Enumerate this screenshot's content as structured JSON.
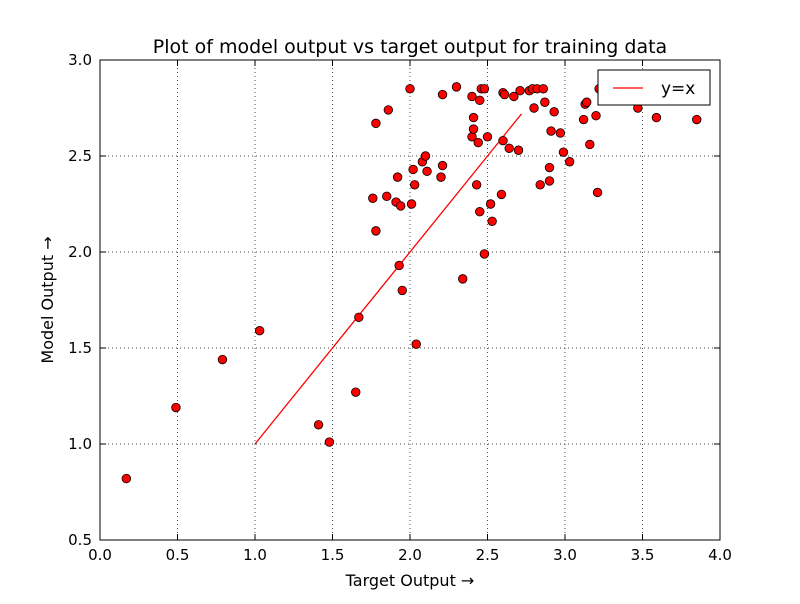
{
  "chart_data": {
    "type": "scatter",
    "title": "Plot of model output vs target output for training data",
    "xlabel": "Target Output  →",
    "ylabel": "Model Output  →",
    "xlim": [
      0.0,
      4.0
    ],
    "ylim": [
      0.5,
      3.0
    ],
    "xticks": [
      "0.0",
      "0.5",
      "1.0",
      "1.5",
      "2.0",
      "2.5",
      "3.0",
      "3.5",
      "4.0"
    ],
    "yticks": [
      "0.5",
      "1.0",
      "1.5",
      "2.0",
      "2.5",
      "3.0"
    ],
    "grid": true,
    "legend_position": "top-right",
    "point_color": "#ff0000",
    "line_color": "#ff0000",
    "series": [
      {
        "type": "scatter",
        "points": [
          [
            0.17,
            0.82
          ],
          [
            0.49,
            1.19
          ],
          [
            0.79,
            1.44
          ],
          [
            1.03,
            1.59
          ],
          [
            1.41,
            1.1
          ],
          [
            1.48,
            1.01
          ],
          [
            1.65,
            1.27
          ],
          [
            1.67,
            1.66
          ],
          [
            1.76,
            2.28
          ],
          [
            1.78,
            2.11
          ],
          [
            1.78,
            2.67
          ],
          [
            1.85,
            2.29
          ],
          [
            1.86,
            2.74
          ],
          [
            1.91,
            2.26
          ],
          [
            1.92,
            2.39
          ],
          [
            1.93,
            1.93
          ],
          [
            1.94,
            2.24
          ],
          [
            1.95,
            1.8
          ],
          [
            2.0,
            2.85
          ],
          [
            2.01,
            2.25
          ],
          [
            2.02,
            2.43
          ],
          [
            2.03,
            2.35
          ],
          [
            2.04,
            1.52
          ],
          [
            2.08,
            2.47
          ],
          [
            2.1,
            2.5
          ],
          [
            2.11,
            2.42
          ],
          [
            2.2,
            2.39
          ],
          [
            2.21,
            2.45
          ],
          [
            2.21,
            2.82
          ],
          [
            2.3,
            2.86
          ],
          [
            2.34,
            1.86
          ],
          [
            2.4,
            2.81
          ],
          [
            2.4,
            2.6
          ],
          [
            2.41,
            2.7
          ],
          [
            2.41,
            2.64
          ],
          [
            2.43,
            2.35
          ],
          [
            2.44,
            2.57
          ],
          [
            2.45,
            2.79
          ],
          [
            2.45,
            2.21
          ],
          [
            2.46,
            2.85
          ],
          [
            2.48,
            2.85
          ],
          [
            2.48,
            1.99
          ],
          [
            2.5,
            2.6
          ],
          [
            2.52,
            2.25
          ],
          [
            2.53,
            2.16
          ],
          [
            2.59,
            2.3
          ],
          [
            2.6,
            2.58
          ],
          [
            2.6,
            2.83
          ],
          [
            2.61,
            2.82
          ],
          [
            2.64,
            2.54
          ],
          [
            2.67,
            2.81
          ],
          [
            2.7,
            2.53
          ],
          [
            2.71,
            2.84
          ],
          [
            2.77,
            2.84
          ],
          [
            2.79,
            2.85
          ],
          [
            2.8,
            2.75
          ],
          [
            2.82,
            2.85
          ],
          [
            2.84,
            2.35
          ],
          [
            2.86,
            2.85
          ],
          [
            2.87,
            2.78
          ],
          [
            2.9,
            2.37
          ],
          [
            2.9,
            2.44
          ],
          [
            2.91,
            2.63
          ],
          [
            2.93,
            2.73
          ],
          [
            2.97,
            2.62
          ],
          [
            2.99,
            2.52
          ],
          [
            3.03,
            2.47
          ],
          [
            3.12,
            2.69
          ],
          [
            3.13,
            2.77
          ],
          [
            3.14,
            2.78
          ],
          [
            3.16,
            2.56
          ],
          [
            3.2,
            2.71
          ],
          [
            3.21,
            2.31
          ],
          [
            3.22,
            2.85
          ],
          [
            3.47,
            2.75
          ],
          [
            3.59,
            2.7
          ],
          [
            3.85,
            2.69
          ]
        ]
      },
      {
        "type": "line",
        "name": "y=x",
        "points": [
          [
            1.0,
            1.0
          ],
          [
            2.72,
            2.72
          ]
        ]
      }
    ]
  }
}
